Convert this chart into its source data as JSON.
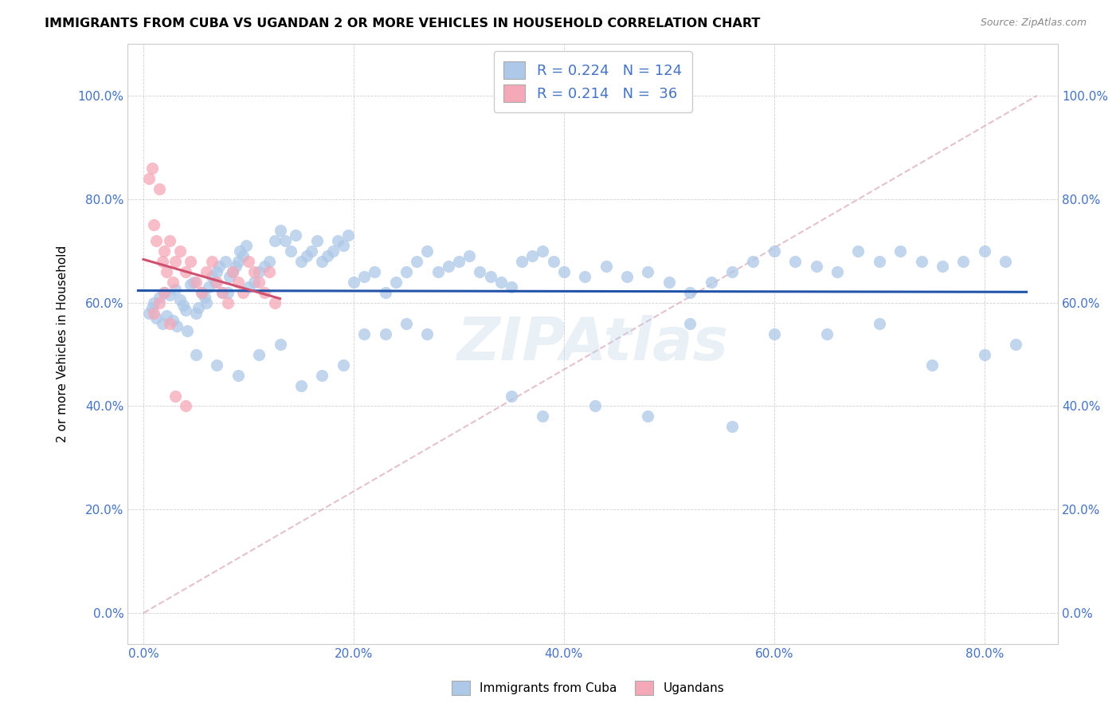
{
  "title": "IMMIGRANTS FROM CUBA VS UGANDAN 2 OR MORE VEHICLES IN HOUSEHOLD CORRELATION CHART",
  "source": "Source: ZipAtlas.com",
  "xlabel_ticks": [
    "0.0%",
    "20.0%",
    "40.0%",
    "60.0%",
    "80.0%"
  ],
  "ylabel_ticks": [
    "0.0%",
    "20.0%",
    "40.0%",
    "60.0%",
    "80.0%",
    "100.0%"
  ],
  "xlabel_values": [
    0.0,
    0.2,
    0.4,
    0.6,
    0.8
  ],
  "ylabel_values": [
    0.0,
    0.2,
    0.4,
    0.6,
    0.8,
    1.0
  ],
  "xlim": [
    -0.015,
    0.87
  ],
  "ylim": [
    -0.06,
    1.1
  ],
  "cuba_R": "0.224",
  "cuba_N": "124",
  "uganda_R": "0.214",
  "uganda_N": " 36",
  "cuba_color": "#adc8e8",
  "uganda_color": "#f5a8b8",
  "cuba_line_color": "#2255aa",
  "uganda_line_color": "#d05070",
  "diagonal_color": "#d8a8b8",
  "watermark": "ZIPAtlas",
  "legend_cuba_label": "Immigrants from Cuba",
  "legend_uganda_label": "Ugandans",
  "cuba_scatter_x": [
    0.005,
    0.008,
    0.01,
    0.012,
    0.015,
    0.018,
    0.02,
    0.022,
    0.025,
    0.028,
    0.03,
    0.032,
    0.035,
    0.038,
    0.04,
    0.042,
    0.045,
    0.048,
    0.05,
    0.052,
    0.055,
    0.058,
    0.06,
    0.062,
    0.065,
    0.068,
    0.07,
    0.072,
    0.075,
    0.078,
    0.08,
    0.082,
    0.085,
    0.088,
    0.09,
    0.092,
    0.095,
    0.098,
    0.1,
    0.105,
    0.11,
    0.115,
    0.12,
    0.125,
    0.13,
    0.135,
    0.14,
    0.145,
    0.15,
    0.155,
    0.16,
    0.165,
    0.17,
    0.175,
    0.18,
    0.185,
    0.19,
    0.195,
    0.2,
    0.21,
    0.22,
    0.23,
    0.24,
    0.25,
    0.26,
    0.27,
    0.28,
    0.29,
    0.3,
    0.31,
    0.32,
    0.33,
    0.34,
    0.35,
    0.36,
    0.37,
    0.38,
    0.39,
    0.4,
    0.42,
    0.44,
    0.46,
    0.48,
    0.5,
    0.52,
    0.54,
    0.56,
    0.58,
    0.6,
    0.62,
    0.64,
    0.66,
    0.68,
    0.7,
    0.72,
    0.74,
    0.76,
    0.78,
    0.8,
    0.82,
    0.05,
    0.07,
    0.09,
    0.11,
    0.13,
    0.15,
    0.17,
    0.19,
    0.21,
    0.23,
    0.25,
    0.27,
    0.35,
    0.38,
    0.43,
    0.48,
    0.52,
    0.56,
    0.6,
    0.65,
    0.7,
    0.75,
    0.8,
    0.83
  ],
  "cuba_scatter_y": [
    0.58,
    0.59,
    0.6,
    0.57,
    0.61,
    0.56,
    0.62,
    0.575,
    0.615,
    0.565,
    0.625,
    0.555,
    0.605,
    0.595,
    0.585,
    0.545,
    0.635,
    0.64,
    0.58,
    0.59,
    0.62,
    0.61,
    0.6,
    0.63,
    0.65,
    0.64,
    0.66,
    0.67,
    0.62,
    0.68,
    0.62,
    0.65,
    0.66,
    0.67,
    0.68,
    0.7,
    0.69,
    0.71,
    0.63,
    0.64,
    0.66,
    0.67,
    0.68,
    0.72,
    0.74,
    0.72,
    0.7,
    0.73,
    0.68,
    0.69,
    0.7,
    0.72,
    0.68,
    0.69,
    0.7,
    0.72,
    0.71,
    0.73,
    0.64,
    0.65,
    0.66,
    0.62,
    0.64,
    0.66,
    0.68,
    0.7,
    0.66,
    0.67,
    0.68,
    0.69,
    0.66,
    0.65,
    0.64,
    0.63,
    0.68,
    0.69,
    0.7,
    0.68,
    0.66,
    0.65,
    0.67,
    0.65,
    0.66,
    0.64,
    0.62,
    0.64,
    0.66,
    0.68,
    0.7,
    0.68,
    0.67,
    0.66,
    0.7,
    0.68,
    0.7,
    0.68,
    0.67,
    0.68,
    0.7,
    0.68,
    0.5,
    0.48,
    0.46,
    0.5,
    0.52,
    0.44,
    0.46,
    0.48,
    0.54,
    0.54,
    0.56,
    0.54,
    0.42,
    0.38,
    0.4,
    0.38,
    0.56,
    0.36,
    0.54,
    0.54,
    0.56,
    0.48,
    0.5,
    0.52
  ],
  "uganda_scatter_x": [
    0.005,
    0.008,
    0.01,
    0.012,
    0.015,
    0.018,
    0.02,
    0.022,
    0.025,
    0.028,
    0.03,
    0.035,
    0.04,
    0.045,
    0.05,
    0.055,
    0.06,
    0.065,
    0.07,
    0.075,
    0.08,
    0.085,
    0.09,
    0.095,
    0.1,
    0.105,
    0.11,
    0.115,
    0.12,
    0.125,
    0.01,
    0.015,
    0.02,
    0.025,
    0.03,
    0.04
  ],
  "uganda_scatter_y": [
    0.84,
    0.86,
    0.75,
    0.72,
    0.82,
    0.68,
    0.7,
    0.66,
    0.72,
    0.64,
    0.68,
    0.7,
    0.66,
    0.68,
    0.64,
    0.62,
    0.66,
    0.68,
    0.64,
    0.62,
    0.6,
    0.66,
    0.64,
    0.62,
    0.68,
    0.66,
    0.64,
    0.62,
    0.66,
    0.6,
    0.58,
    0.6,
    0.62,
    0.56,
    0.42,
    0.4
  ]
}
